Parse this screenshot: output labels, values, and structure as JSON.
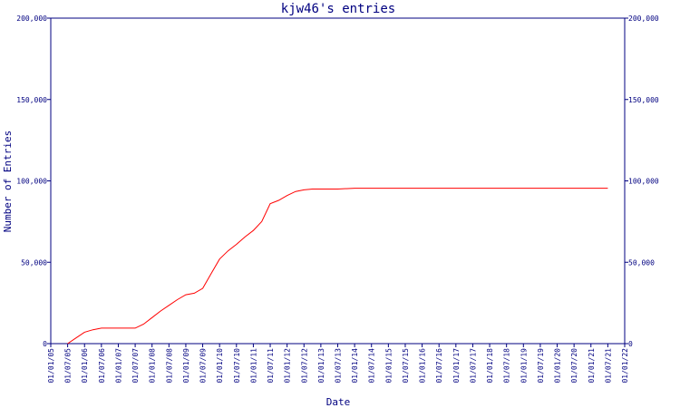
{
  "chart_data": {
    "type": "line",
    "title": "kjw46's entries",
    "xlabel": "Date",
    "ylabel": "Number of Entries",
    "x_ticks": [
      "01/01/05",
      "01/07/05",
      "01/01/06",
      "01/07/06",
      "01/01/07",
      "01/07/07",
      "01/01/08",
      "01/07/08",
      "01/01/09",
      "01/07/09",
      "01/01/10",
      "01/07/10",
      "01/01/11",
      "01/07/11",
      "01/01/12",
      "01/07/12",
      "01/01/13",
      "01/07/13",
      "01/01/14",
      "01/07/14",
      "01/01/15",
      "01/07/15",
      "01/01/16",
      "01/07/16",
      "01/01/17",
      "01/07/17",
      "01/01/18",
      "01/07/18",
      "01/01/19",
      "01/07/19",
      "01/01/20",
      "01/07/20",
      "01/01/21",
      "01/07/21",
      "01/01/22"
    ],
    "y_ticks": [
      0,
      50000,
      100000,
      150000,
      200000
    ],
    "y_tick_labels": [
      "0",
      "50,000",
      "100,000",
      "150,000",
      "200,000"
    ],
    "ylim": [
      0,
      200000
    ],
    "colors": {
      "axis": "#000080",
      "line": "#ff0000"
    },
    "series": [
      {
        "x": [
          "2005-07",
          "2005-10",
          "2006-01",
          "2006-04",
          "2006-07",
          "2006-10",
          "2007-01",
          "2007-04",
          "2007-07",
          "2007-10",
          "2008-01",
          "2008-04",
          "2008-07",
          "2008-10",
          "2009-01",
          "2009-04",
          "2009-07",
          "2009-10",
          "2010-01",
          "2010-04",
          "2010-07",
          "2010-10",
          "2011-01",
          "2011-04",
          "2011-07",
          "2011-10",
          "2012-01",
          "2012-04",
          "2012-07",
          "2012-10",
          "2013-01",
          "2013-07",
          "2014-01",
          "2014-07",
          "2015-07",
          "2016-07",
          "2017-07",
          "2018-07",
          "2019-07",
          "2020-07",
          "2021-07"
        ],
        "values": [
          0,
          3500,
          7000,
          8500,
          9500,
          9500,
          9500,
          9500,
          9500,
          12000,
          16000,
          20000,
          23500,
          27000,
          30000,
          31000,
          34000,
          43000,
          52000,
          57000,
          61000,
          65500,
          69500,
          75000,
          86000,
          88000,
          91000,
          93500,
          94500,
          95000,
          95000,
          95000,
          95500,
          95500,
          95500,
          95500,
          95500,
          95500,
          95500,
          95500,
          95500
        ]
      }
    ]
  }
}
